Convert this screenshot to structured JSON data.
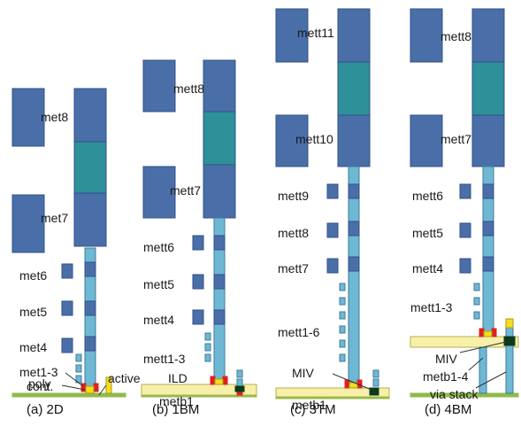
{
  "colors": {
    "metal": "#4a6fa8",
    "metal_stroke": "#30508a",
    "via": "#6fb8d4",
    "via_stroke": "#3b7c98",
    "teal": "#2e9098",
    "ild": "#f6f0a8",
    "ild_stroke": "#b8ae50",
    "substrate": "#8fbb4a",
    "red": "#e02020",
    "yellow": "#f4dc20",
    "pointer": "#333333"
  },
  "panels": {
    "a": {
      "caption": "(a) 2D",
      "labels": {
        "met8": "met8",
        "met7": "met7",
        "met6": "met6",
        "met5": "met5",
        "met4": "met4",
        "met1_3": "met1-3",
        "cont": "cont.",
        "poly": "poly",
        "active": "active"
      }
    },
    "b": {
      "caption": "(b) 1BM",
      "labels": {
        "mett8": "mett8",
        "mett7": "mett7",
        "mett6": "mett6",
        "mett5": "mett5",
        "mett4": "mett4",
        "mett1_3": "mett1-3",
        "ild": "ILD",
        "metb1": "metb1"
      }
    },
    "c": {
      "caption": "(c) 3TM",
      "labels": {
        "mett11": "mett11",
        "mett10": "mett10",
        "mett9": "mett9",
        "mett8": "mett8",
        "mett7": "mett7",
        "mett1_6": "mett1-6",
        "miv": "MIV",
        "metb1": "metb1"
      }
    },
    "d": {
      "caption": "(d) 4BM",
      "labels": {
        "mett8": "mett8",
        "mett7": "mett7",
        "mett6": "mett6",
        "mett5": "mett5",
        "mett4": "mett4",
        "mett1_3": "mett1-3",
        "miv": "MIV",
        "metb1_4": "metb1-4",
        "via_stack": "via stack"
      }
    }
  }
}
